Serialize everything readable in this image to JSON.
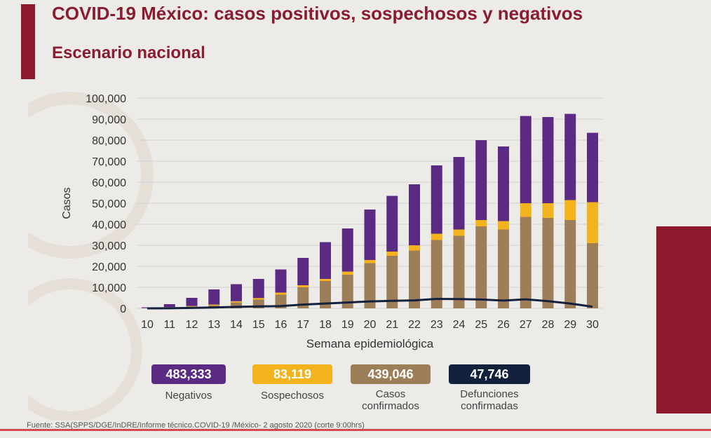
{
  "title": "COVID-19 México: casos positivos, sospechosos y negativos",
  "subtitle": "Escenario nacional",
  "colors": {
    "negativos": "#5b2a83",
    "sospechosos": "#f2b31c",
    "confirmados": "#9c7e58",
    "defunciones": "#14213d",
    "brand": "#8c1a2c"
  },
  "legend": [
    {
      "value": "483,333",
      "label": "Negativos",
      "color": "#5b2a83"
    },
    {
      "value": "83,119",
      "label": "Sospechosos",
      "color": "#f2b31c"
    },
    {
      "value": "439,046",
      "label": "Casos confirmados",
      "color": "#9c7e58"
    },
    {
      "value": "47,746",
      "label": "Defunciones confirmadas",
      "color": "#14213d"
    }
  ],
  "source": "Fuente: SSA(SPPS/DGE/InDRE/Informe técnico.COVID-19 /México- 2 agosto 2020 (corte 9:00hrs)",
  "chart_data": {
    "type": "bar",
    "stacked": true,
    "xlabel": "Semana epidemiológica",
    "ylabel": "Casos",
    "ylim": [
      0,
      100000
    ],
    "yticks": [
      0,
      10000,
      20000,
      30000,
      40000,
      50000,
      60000,
      70000,
      80000,
      90000,
      100000
    ],
    "ytick_labels": [
      "0",
      "10,000",
      "20,000",
      "30,000",
      "40,000",
      "50,000",
      "60,000",
      "70,000",
      "80,000",
      "90,000",
      "100,000"
    ],
    "categories": [
      "10",
      "11",
      "12",
      "13",
      "14",
      "15",
      "16",
      "17",
      "18",
      "19",
      "20",
      "21",
      "22",
      "23",
      "24",
      "25",
      "26",
      "27",
      "28",
      "29",
      "30"
    ],
    "series": [
      {
        "name": "Casos confirmados",
        "values": [
          100,
          400,
          800,
          1400,
          2800,
          4200,
          6500,
          10000,
          13000,
          16000,
          21500,
          25000,
          27500,
          32500,
          34500,
          39000,
          37500,
          43500,
          43000,
          42000,
          31000
        ]
      },
      {
        "name": "Sospechosos",
        "values": [
          50,
          200,
          300,
          400,
          600,
          700,
          1000,
          1000,
          1000,
          1500,
          1500,
          2000,
          2500,
          3000,
          3000,
          3000,
          4000,
          6500,
          7000,
          9500,
          19500
        ]
      },
      {
        "name": "Negativos",
        "values": [
          350,
          1400,
          3900,
          7200,
          8100,
          9100,
          11000,
          13000,
          17500,
          20500,
          24000,
          26500,
          29000,
          32500,
          34500,
          38000,
          35500,
          41500,
          41000,
          41000,
          33000
        ]
      },
      {
        "name": "Defunciones",
        "type": "line",
        "values": [
          0,
          50,
          200,
          400,
          700,
          900,
          1100,
          1800,
          2300,
          2800,
          3300,
          3600,
          3800,
          4500,
          4400,
          4200,
          3700,
          4300,
          3400,
          2300,
          800
        ]
      }
    ]
  }
}
